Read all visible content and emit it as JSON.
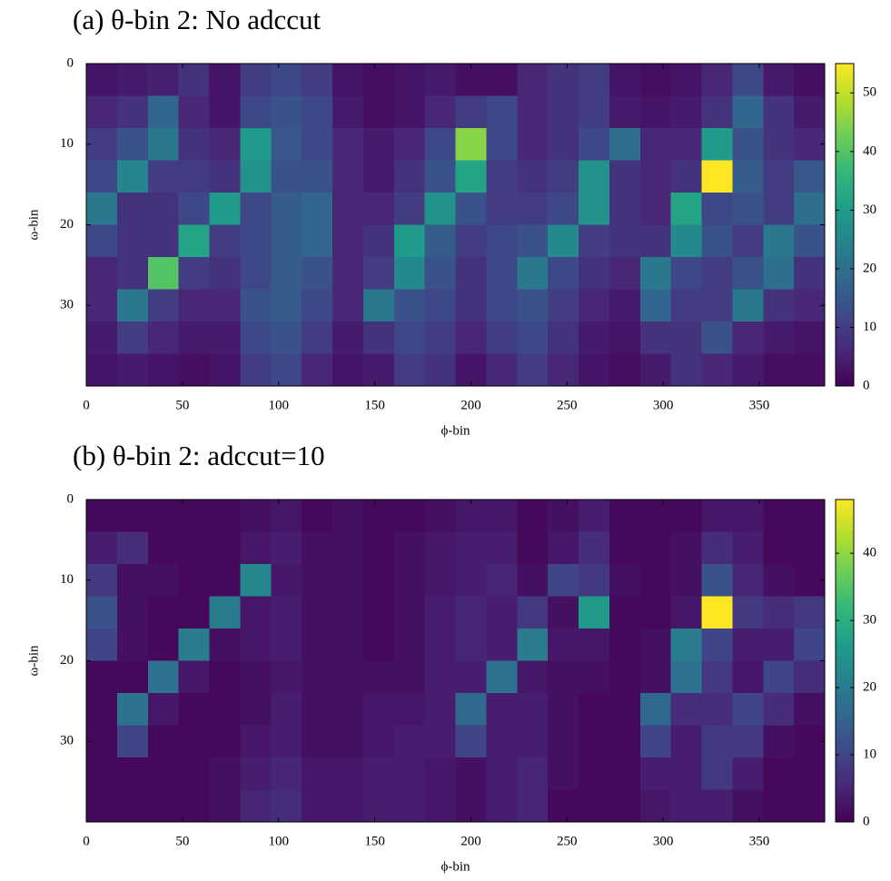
{
  "chart_data": [
    {
      "type": "heatmap",
      "title": "(a) θ-bin 2: No adccut",
      "x_label": "ϕ-bin",
      "y_label": "ω-bin",
      "xbins": [
        0,
        16,
        32,
        48,
        64,
        80,
        96,
        112,
        128,
        144,
        160,
        176,
        192,
        208,
        224,
        240,
        256,
        272,
        288,
        304,
        320,
        336,
        352,
        368,
        384
      ],
      "ybins": [
        0,
        4,
        8,
        12,
        16,
        20,
        24,
        28,
        32,
        36,
        40
      ],
      "values": [
        [
          3,
          4,
          5,
          8,
          3,
          10,
          12,
          10,
          3,
          2,
          3,
          4,
          2,
          2,
          6,
          8,
          10,
          3,
          2,
          3,
          6,
          12,
          4,
          2
        ],
        [
          6,
          8,
          18,
          6,
          3,
          12,
          14,
          12,
          4,
          2,
          3,
          6,
          10,
          12,
          6,
          8,
          10,
          4,
          3,
          4,
          8,
          18,
          8,
          4
        ],
        [
          10,
          14,
          22,
          8,
          6,
          30,
          15,
          12,
          6,
          4,
          6,
          12,
          45,
          12,
          6,
          8,
          12,
          20,
          6,
          6,
          30,
          14,
          8,
          6
        ],
        [
          12,
          25,
          10,
          10,
          8,
          28,
          14,
          14,
          6,
          4,
          8,
          14,
          32,
          10,
          8,
          10,
          28,
          8,
          6,
          8,
          55,
          16,
          10,
          15
        ],
        [
          22,
          8,
          8,
          12,
          30,
          12,
          16,
          18,
          6,
          6,
          10,
          28,
          14,
          10,
          10,
          12,
          28,
          8,
          6,
          32,
          12,
          14,
          10,
          20
        ],
        [
          12,
          8,
          8,
          32,
          10,
          12,
          16,
          18,
          6,
          8,
          30,
          16,
          10,
          12,
          14,
          26,
          10,
          8,
          8,
          26,
          14,
          10,
          22,
          14
        ],
        [
          6,
          8,
          40,
          10,
          8,
          12,
          16,
          14,
          6,
          10,
          26,
          14,
          8,
          12,
          22,
          12,
          8,
          6,
          22,
          12,
          10,
          14,
          20,
          8
        ],
        [
          6,
          22,
          10,
          6,
          6,
          14,
          16,
          12,
          6,
          22,
          14,
          12,
          8,
          12,
          14,
          10,
          6,
          4,
          18,
          10,
          10,
          22,
          8,
          6
        ],
        [
          4,
          10,
          6,
          4,
          4,
          12,
          14,
          10,
          4,
          8,
          12,
          10,
          6,
          10,
          12,
          8,
          4,
          3,
          8,
          8,
          14,
          6,
          4,
          3
        ],
        [
          3,
          4,
          3,
          2,
          3,
          10,
          12,
          6,
          3,
          4,
          10,
          8,
          3,
          6,
          10,
          6,
          3,
          2,
          4,
          8,
          6,
          4,
          2,
          2
        ]
      ],
      "xlim": [
        0,
        384
      ],
      "ylim": [
        0,
        40
      ],
      "y_inverted": true,
      "xticks": [
        0,
        50,
        100,
        150,
        200,
        250,
        300,
        350
      ],
      "yticks": [
        0,
        10,
        20,
        30
      ],
      "colormap": "viridis",
      "clim": [
        0,
        55
      ],
      "cticks": [
        0,
        10,
        20,
        30,
        40,
        50
      ]
    },
    {
      "type": "heatmap",
      "title": "(b) θ-bin 2: adccut=10",
      "x_label": "ϕ-bin",
      "y_label": "ω-bin",
      "xbins": [
        0,
        16,
        32,
        48,
        64,
        80,
        96,
        112,
        128,
        144,
        160,
        176,
        192,
        208,
        224,
        240,
        256,
        272,
        288,
        304,
        320,
        336,
        352,
        368,
        384
      ],
      "ybins": [
        0,
        4,
        8,
        12,
        16,
        20,
        24,
        28,
        32,
        36,
        40
      ],
      "values": [
        [
          1,
          1,
          1,
          1,
          1,
          2,
          3,
          1,
          2,
          1,
          1,
          2,
          3,
          3,
          1,
          2,
          4,
          1,
          1,
          1,
          3,
          3,
          1,
          1
        ],
        [
          4,
          6,
          1,
          1,
          1,
          3,
          4,
          2,
          2,
          1,
          2,
          3,
          4,
          4,
          1,
          3,
          6,
          1,
          1,
          2,
          6,
          4,
          1,
          1
        ],
        [
          8,
          2,
          2,
          1,
          1,
          22,
          3,
          2,
          2,
          1,
          2,
          3,
          4,
          5,
          2,
          10,
          8,
          2,
          1,
          2,
          12,
          5,
          2,
          1
        ],
        [
          12,
          2,
          1,
          1,
          20,
          3,
          4,
          2,
          2,
          1,
          2,
          4,
          5,
          4,
          8,
          2,
          26,
          1,
          1,
          3,
          48,
          8,
          6,
          8
        ],
        [
          10,
          2,
          1,
          20,
          2,
          3,
          4,
          2,
          2,
          1,
          2,
          4,
          5,
          4,
          20,
          3,
          3,
          1,
          2,
          20,
          10,
          4,
          4,
          10
        ],
        [
          1,
          1,
          18,
          3,
          1,
          2,
          3,
          2,
          2,
          2,
          2,
          4,
          4,
          18,
          3,
          2,
          2,
          1,
          2,
          18,
          8,
          3,
          10,
          6
        ],
        [
          1,
          18,
          3,
          1,
          1,
          2,
          4,
          2,
          2,
          3,
          3,
          4,
          16,
          4,
          4,
          2,
          1,
          1,
          16,
          6,
          6,
          10,
          6,
          2
        ],
        [
          1,
          10,
          1,
          1,
          1,
          3,
          4,
          2,
          2,
          3,
          4,
          4,
          10,
          4,
          4,
          2,
          1,
          1,
          10,
          4,
          8,
          8,
          2,
          1
        ],
        [
          1,
          1,
          1,
          1,
          2,
          4,
          5,
          3,
          3,
          4,
          4,
          3,
          2,
          4,
          5,
          2,
          1,
          1,
          4,
          4,
          8,
          4,
          1,
          1
        ],
        [
          1,
          1,
          1,
          1,
          2,
          5,
          6,
          3,
          3,
          4,
          4,
          3,
          2,
          4,
          5,
          1,
          1,
          1,
          3,
          4,
          4,
          2,
          1,
          1
        ]
      ],
      "xlim": [
        0,
        384
      ],
      "ylim": [
        0,
        40
      ],
      "y_inverted": true,
      "xticks": [
        0,
        50,
        100,
        150,
        200,
        250,
        300,
        350
      ],
      "yticks": [
        0,
        10,
        20,
        30
      ],
      "colormap": "viridis",
      "clim": [
        0,
        48
      ],
      "cticks": [
        0,
        10,
        20,
        30,
        40
      ]
    }
  ]
}
